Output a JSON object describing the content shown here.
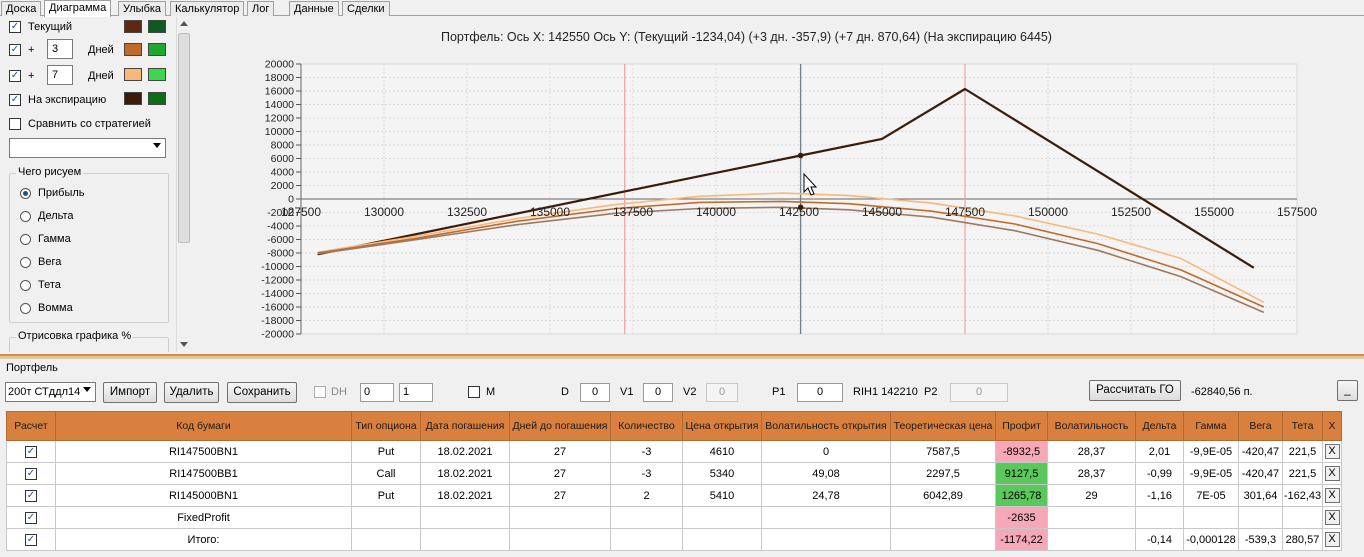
{
  "tabs": [
    "Доска",
    "Диаграмма",
    "Улыбка",
    "Калькулятор",
    "Лог",
    "Данные",
    "Сделки"
  ],
  "active_tab": "Диаграмма",
  "left_panel": {
    "current_label": "Текущий",
    "plus_label": "+",
    "days_label": "Дней",
    "day_offset_1": "3",
    "day_offset_2": "7",
    "expiration_label": "На экспирацию",
    "compare_label": "Сравнить со стратегией",
    "draw_group_title": "Чего рисуем",
    "draw_options": [
      "Прибыль",
      "Дельта",
      "Гамма",
      "Вега",
      "Тета",
      "Вомма"
    ],
    "selected_option": "Прибыль",
    "render_group_title": "Отрисовка графика %",
    "colors": {
      "current": [
        "#5c2a10",
        "#0b5c1e"
      ],
      "plus3": [
        "#c06a2c",
        "#1fa82f"
      ],
      "plus7": [
        "#f9b87a",
        "#3ad84a"
      ],
      "expiration": [
        "#3a1c08",
        "#0b6e14"
      ]
    }
  },
  "chart_title": "Портфель: Ось X: 142550 Ось Y:  (Текущий -1234,04)  (+3 дн. -357,9)  (+7 дн. 870,64)  (На экспирацию 6445)",
  "chart_data": {
    "type": "line",
    "title": "Портфель: Ось X: 142550 Ось Y:  (Текущий -1234,04)  (+3 дн. -357,9)  (+7 дн. 870,64)  (На экспирацию 6445)",
    "xlim": [
      127500,
      157500
    ],
    "ylim": [
      -20000,
      20000
    ],
    "x_ticks": [
      "127500",
      "130000",
      "132500",
      "135000",
      "137500",
      "140000",
      "142500",
      "145000",
      "147500",
      "150000",
      "152500",
      "155000",
      "157500"
    ],
    "y_ticks": [
      "20000",
      "18000",
      "16000",
      "14000",
      "12000",
      "10000",
      "8000",
      "6000",
      "4000",
      "2000",
      "0",
      "-2000",
      "-4000",
      "-6000",
      "-8000",
      "-10000",
      "-12000",
      "-14000",
      "-16000",
      "-18000",
      "-20000"
    ],
    "cursor_x": 142550,
    "vertical_markers": [
      137250,
      147500
    ],
    "series": [
      {
        "color": "#3a1c08",
        "points": [
          [
            128000,
            -8200
          ],
          [
            142550,
            6445
          ],
          [
            145000,
            8900
          ],
          [
            147500,
            16300
          ],
          [
            156200,
            -10200
          ]
        ]
      },
      {
        "color": "#f9b87a",
        "points": [
          [
            128000,
            -7900
          ],
          [
            131000,
            -5500
          ],
          [
            134000,
            -2900
          ],
          [
            137000,
            -800
          ],
          [
            139500,
            400
          ],
          [
            142000,
            870
          ],
          [
            144000,
            500
          ],
          [
            146500,
            -600
          ],
          [
            149000,
            -2500
          ],
          [
            151500,
            -5200
          ],
          [
            154000,
            -8800
          ],
          [
            156500,
            -15300
          ]
        ]
      },
      {
        "color": "#c06a2c",
        "points": [
          [
            128000,
            -8000
          ],
          [
            131000,
            -5800
          ],
          [
            134000,
            -3300
          ],
          [
            137000,
            -1400
          ],
          [
            139500,
            -500
          ],
          [
            142000,
            -358
          ],
          [
            144000,
            -700
          ],
          [
            146500,
            -1800
          ],
          [
            149000,
            -3700
          ],
          [
            151500,
            -6600
          ],
          [
            154000,
            -10500
          ],
          [
            156500,
            -16000
          ]
        ]
      },
      {
        "color": "#9c7a62",
        "points": [
          [
            128000,
            -8100
          ],
          [
            131000,
            -6000
          ],
          [
            134000,
            -3800
          ],
          [
            137000,
            -2100
          ],
          [
            139500,
            -1400
          ],
          [
            142000,
            -1234
          ],
          [
            144000,
            -1600
          ],
          [
            146500,
            -2700
          ],
          [
            149000,
            -4700
          ],
          [
            151500,
            -7600
          ],
          [
            154000,
            -11500
          ],
          [
            156500,
            -16800
          ]
        ]
      }
    ],
    "points_marked": [
      [
        142550,
        6445
      ],
      [
        142550,
        -1234
      ]
    ]
  },
  "portfolio": {
    "title": "Портфель",
    "strategy_select": "200т СТддл14",
    "buttons": {
      "import": "Импорт",
      "delete": "Удалить",
      "save": "Сохранить",
      "calc_go": "Рассчитать ГО",
      "minus": "_"
    },
    "dh_label": "DH",
    "spin1": "0",
    "spin2": "1",
    "m_label": "M",
    "d_label": "D",
    "d_value": "0",
    "v1_label": "V1",
    "v1_value": "0",
    "v2_label": "V2",
    "v2_value": "0",
    "p1_label": "P1",
    "p1_value": "0",
    "rih_label": "RIH1 142210",
    "p2_label": "P2",
    "p2_value": "0",
    "go_value": "-62840,56 п."
  },
  "table": {
    "headers": [
      "Расчет",
      "Код бумаги",
      "Тип опциона",
      "Дата погашения",
      "Дней до погашения",
      "Количество",
      "Цена открытия",
      "Волатильность открытия",
      "Теоретическая цена",
      "Профит",
      "Волатильность",
      "Дельта",
      "Гамма",
      "Вега",
      "Тета",
      "X"
    ],
    "rows": [
      {
        "code": "RI147500BN1",
        "type": "Put",
        "date": "18.02.2021",
        "days": "27",
        "qty": "-3",
        "price": "4610",
        "vol_open": "0",
        "theo": "7587,5",
        "profit": "-8932,5",
        "profit_style": "neg",
        "vol": "28,37",
        "delta": "2,01",
        "gamma": "-9,9E-05",
        "vega": "-420,47",
        "theta": "221,5",
        "x": "X"
      },
      {
        "code": "RI147500BB1",
        "type": "Call",
        "date": "18.02.2021",
        "days": "27",
        "qty": "-3",
        "price": "5340",
        "vol_open": "49,08",
        "theo": "2297,5",
        "profit": "9127,5",
        "profit_style": "pos",
        "vol": "28,37",
        "delta": "-0,99",
        "gamma": "-9,9E-05",
        "vega": "-420,47",
        "theta": "221,5",
        "x": "X"
      },
      {
        "code": "RI145000BN1",
        "type": "Put",
        "date": "18.02.2021",
        "days": "27",
        "qty": "2",
        "price": "5410",
        "vol_open": "24,78",
        "theo": "6042,89",
        "profit": "1265,78",
        "profit_style": "pos",
        "vol": "29",
        "delta": "-1,16",
        "gamma": "7E-05",
        "vega": "301,64",
        "theta": "-162,43",
        "x": "X"
      },
      {
        "code": "FixedProfit",
        "type": "",
        "date": "",
        "days": "",
        "qty": "",
        "price": "",
        "vol_open": "",
        "theo": "",
        "profit": "-2635",
        "profit_style": "neg",
        "vol": "",
        "delta": "",
        "gamma": "",
        "vega": "",
        "theta": "",
        "x": "X"
      },
      {
        "code": "Итого:",
        "type": "",
        "date": "",
        "days": "",
        "qty": "",
        "price": "",
        "vol_open": "",
        "theo": "",
        "profit": "-1174,22",
        "profit_style": "neg",
        "vol": "",
        "delta": "-0,14",
        "gamma": "-0,000128",
        "vega": "-539,3",
        "theta": "280,57",
        "x": "X"
      }
    ]
  }
}
